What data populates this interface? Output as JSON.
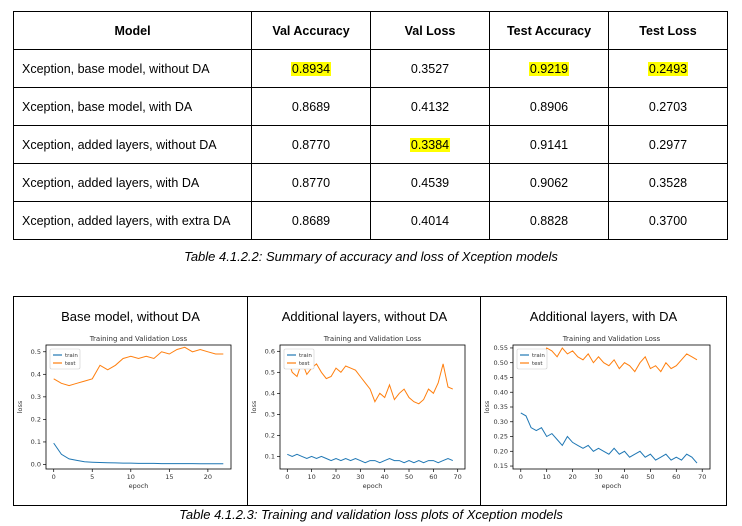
{
  "table": {
    "headers": [
      "Model",
      "Val Accuracy",
      "Val Loss",
      "Test Accuracy",
      "Test Loss"
    ],
    "rows": [
      {
        "model": "Xception, base model, without DA",
        "val_acc": "0.8934",
        "val_loss": "0.3527",
        "test_acc": "0.9219",
        "test_loss": "0.2493"
      },
      {
        "model": "Xception, base model, with DA",
        "val_acc": "0.8689",
        "val_loss": "0.4132",
        "test_acc": "0.8906",
        "test_loss": "0.2703"
      },
      {
        "model": "Xception, added layers, without DA",
        "val_acc": "0.8770",
        "val_loss": "0.3384",
        "test_acc": "0.9141",
        "test_loss": "0.2977"
      },
      {
        "model": "Xception, added layers, with DA",
        "val_acc": "0.8770",
        "val_loss": "0.4539",
        "test_acc": "0.9062",
        "test_loss": "0.3528"
      },
      {
        "model": "Xception, added layers, with extra DA",
        "val_acc": "0.8689",
        "val_loss": "0.4014",
        "test_acc": "0.8828",
        "test_loss": "0.3700"
      }
    ],
    "highlighted_cells": [
      "0.8934",
      "0.9219",
      "0.2493",
      "0.3384"
    ],
    "highlight_color": "#ffff00"
  },
  "captions": {
    "table": "Table 4.1.2.2: Summary of accuracy and loss of Xception models",
    "plots": "Table 4.1.2.3: Training and validation loss plots of Xception models"
  },
  "plot_titles": [
    "Base model, without DA",
    "Additional layers, without DA",
    "Additional layers, with DA"
  ],
  "colors": {
    "train": "#1f77b4",
    "test": "#ff7f0e"
  },
  "chart_data": [
    {
      "type": "line",
      "title": "Training and Validation Loss",
      "xlabel": "epoch",
      "ylabel": "loss",
      "xlim": [
        -1,
        23
      ],
      "ylim": [
        -0.02,
        0.53
      ],
      "xticks": [
        0,
        5,
        10,
        15,
        20
      ],
      "yticks": [
        0.0,
        0.1,
        0.2,
        0.3,
        0.4,
        0.5
      ],
      "legend": "top-left",
      "x": [
        0,
        1,
        2,
        3,
        4,
        5,
        6,
        7,
        8,
        9,
        10,
        11,
        12,
        13,
        14,
        15,
        16,
        17,
        18,
        19,
        20,
        21,
        22
      ],
      "series": [
        {
          "name": "train",
          "values": [
            0.095,
            0.045,
            0.025,
            0.018,
            0.012,
            0.01,
            0.009,
            0.008,
            0.007,
            0.006,
            0.006,
            0.005,
            0.005,
            0.005,
            0.004,
            0.004,
            0.004,
            0.004,
            0.004,
            0.003,
            0.003,
            0.003,
            0.003
          ]
        },
        {
          "name": "test",
          "values": [
            0.38,
            0.36,
            0.35,
            0.36,
            0.37,
            0.38,
            0.44,
            0.42,
            0.44,
            0.47,
            0.48,
            0.47,
            0.48,
            0.47,
            0.5,
            0.49,
            0.51,
            0.52,
            0.5,
            0.51,
            0.5,
            0.49,
            0.49
          ]
        }
      ]
    },
    {
      "type": "line",
      "title": "Training and Validation Loss",
      "xlabel": "epoch",
      "ylabel": "loss",
      "xlim": [
        -3,
        73
      ],
      "ylim": [
        0.04,
        0.63
      ],
      "xticks": [
        0,
        10,
        20,
        30,
        40,
        50,
        60,
        70
      ],
      "yticks": [
        0.1,
        0.2,
        0.3,
        0.4,
        0.5,
        0.6
      ],
      "legend": "top-left",
      "x": [
        0,
        2,
        4,
        6,
        8,
        10,
        12,
        14,
        16,
        18,
        20,
        22,
        24,
        26,
        28,
        30,
        32,
        34,
        36,
        38,
        40,
        42,
        44,
        46,
        48,
        50,
        52,
        54,
        56,
        58,
        60,
        62,
        64,
        66,
        68
      ],
      "series": [
        {
          "name": "train",
          "values": [
            0.11,
            0.1,
            0.11,
            0.1,
            0.09,
            0.1,
            0.09,
            0.1,
            0.09,
            0.08,
            0.09,
            0.08,
            0.09,
            0.08,
            0.09,
            0.08,
            0.07,
            0.08,
            0.08,
            0.07,
            0.08,
            0.09,
            0.08,
            0.08,
            0.07,
            0.08,
            0.07,
            0.08,
            0.07,
            0.08,
            0.08,
            0.07,
            0.08,
            0.09,
            0.08
          ]
        },
        {
          "name": "test",
          "values": [
            0.57,
            0.5,
            0.48,
            0.55,
            0.49,
            0.52,
            0.54,
            0.5,
            0.47,
            0.48,
            0.52,
            0.5,
            0.53,
            0.52,
            0.51,
            0.48,
            0.45,
            0.42,
            0.36,
            0.4,
            0.38,
            0.44,
            0.37,
            0.4,
            0.42,
            0.38,
            0.36,
            0.35,
            0.37,
            0.42,
            0.4,
            0.45,
            0.54,
            0.43,
            0.42
          ]
        }
      ]
    },
    {
      "type": "line",
      "title": "Training and Validation Loss",
      "xlabel": "epoch",
      "ylabel": "loss",
      "xlim": [
        -3,
        73
      ],
      "ylim": [
        0.14,
        0.56
      ],
      "xticks": [
        0,
        10,
        20,
        30,
        40,
        50,
        60,
        70
      ],
      "yticks": [
        0.15,
        0.2,
        0.25,
        0.3,
        0.35,
        0.4,
        0.45,
        0.5,
        0.55
      ],
      "legend": "top-left",
      "x": [
        0,
        2,
        4,
        6,
        8,
        10,
        12,
        14,
        16,
        18,
        20,
        22,
        24,
        26,
        28,
        30,
        32,
        34,
        36,
        38,
        40,
        42,
        44,
        46,
        48,
        50,
        52,
        54,
        56,
        58,
        60,
        62,
        64,
        66,
        68
      ],
      "series": [
        {
          "name": "train",
          "values": [
            0.33,
            0.32,
            0.28,
            0.27,
            0.28,
            0.25,
            0.26,
            0.24,
            0.22,
            0.25,
            0.23,
            0.22,
            0.21,
            0.22,
            0.2,
            0.21,
            0.2,
            0.19,
            0.21,
            0.19,
            0.2,
            0.18,
            0.19,
            0.2,
            0.18,
            0.19,
            0.17,
            0.18,
            0.19,
            0.17,
            0.18,
            0.17,
            0.19,
            0.18,
            0.16
          ]
        },
        {
          "name": "test",
          "values": [
            0.54,
            0.51,
            0.53,
            0.52,
            0.5,
            0.55,
            0.54,
            0.52,
            0.55,
            0.53,
            0.54,
            0.52,
            0.51,
            0.53,
            0.5,
            0.52,
            0.5,
            0.49,
            0.51,
            0.48,
            0.5,
            0.49,
            0.47,
            0.5,
            0.52,
            0.48,
            0.49,
            0.47,
            0.5,
            0.48,
            0.49,
            0.51,
            0.53,
            0.52,
            0.51
          ]
        }
      ]
    }
  ]
}
